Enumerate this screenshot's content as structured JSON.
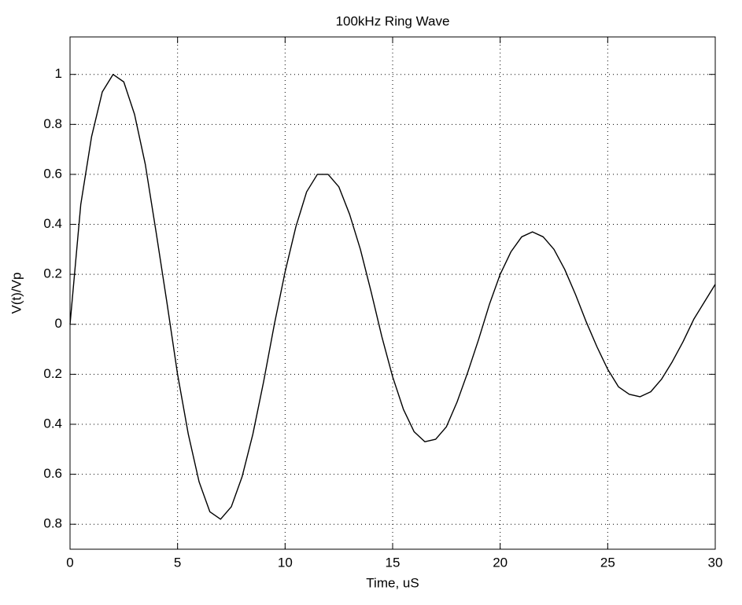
{
  "chart_data": {
    "type": "line",
    "title": "100kHz Ring Wave",
    "x_label": "Time, uS",
    "y_label": "V(t)/Vp",
    "x": [
      0,
      0.5,
      1,
      1.5,
      2,
      2.5,
      3,
      3.5,
      4,
      4.5,
      5,
      5.5,
      6,
      6.5,
      7,
      7.5,
      8,
      8.5,
      9,
      9.5,
      10,
      10.5,
      11,
      11.5,
      12,
      12.5,
      13,
      13.5,
      14,
      14.5,
      15,
      15.5,
      16,
      16.5,
      17,
      17.5,
      18,
      18.5,
      19,
      19.5,
      20,
      20.5,
      21,
      21.5,
      22,
      22.5,
      23,
      23.5,
      24,
      24.5,
      25,
      25.5,
      26,
      26.5,
      27,
      27.5,
      28,
      28.5,
      29,
      29.5,
      30
    ],
    "series": [
      {
        "color": "#000000",
        "values": [
          0,
          0.48,
          0.75,
          0.93,
          1.0,
          0.97,
          0.84,
          0.64,
          0.37,
          0.09,
          -0.2,
          -0.44,
          -0.63,
          -0.75,
          -0.78,
          -0.73,
          -0.61,
          -0.44,
          -0.23,
          0,
          0.21,
          0.39,
          0.53,
          0.6,
          0.6,
          0.55,
          0.44,
          0.3,
          0.13,
          -0.05,
          -0.21,
          -0.34,
          -0.43,
          -0.47,
          -0.46,
          -0.41,
          -0.31,
          -0.19,
          -0.06,
          0.08,
          0.2,
          0.29,
          0.35,
          0.37,
          0.35,
          0.3,
          0.22,
          0.12,
          0.01,
          -0.09,
          -0.18,
          -0.25,
          -0.28,
          -0.29,
          -0.27,
          -0.22,
          -0.15,
          -0.07,
          0.02,
          0.09,
          0.16
        ]
      }
    ],
    "xlim": [
      0,
      30
    ],
    "xticks": [
      0,
      5,
      10,
      15,
      20,
      25,
      30
    ],
    "ylim": [
      -0.9,
      1.15
    ],
    "yticks": [
      {
        "value": -0.8,
        "label": "0.8"
      },
      {
        "value": -0.6,
        "label": "0.6"
      },
      {
        "value": -0.4,
        "label": "0.4"
      },
      {
        "value": -0.2,
        "label": "0.2"
      },
      0,
      0.2,
      0.4,
      0.6,
      0.8,
      1
    ],
    "grid": true
  }
}
